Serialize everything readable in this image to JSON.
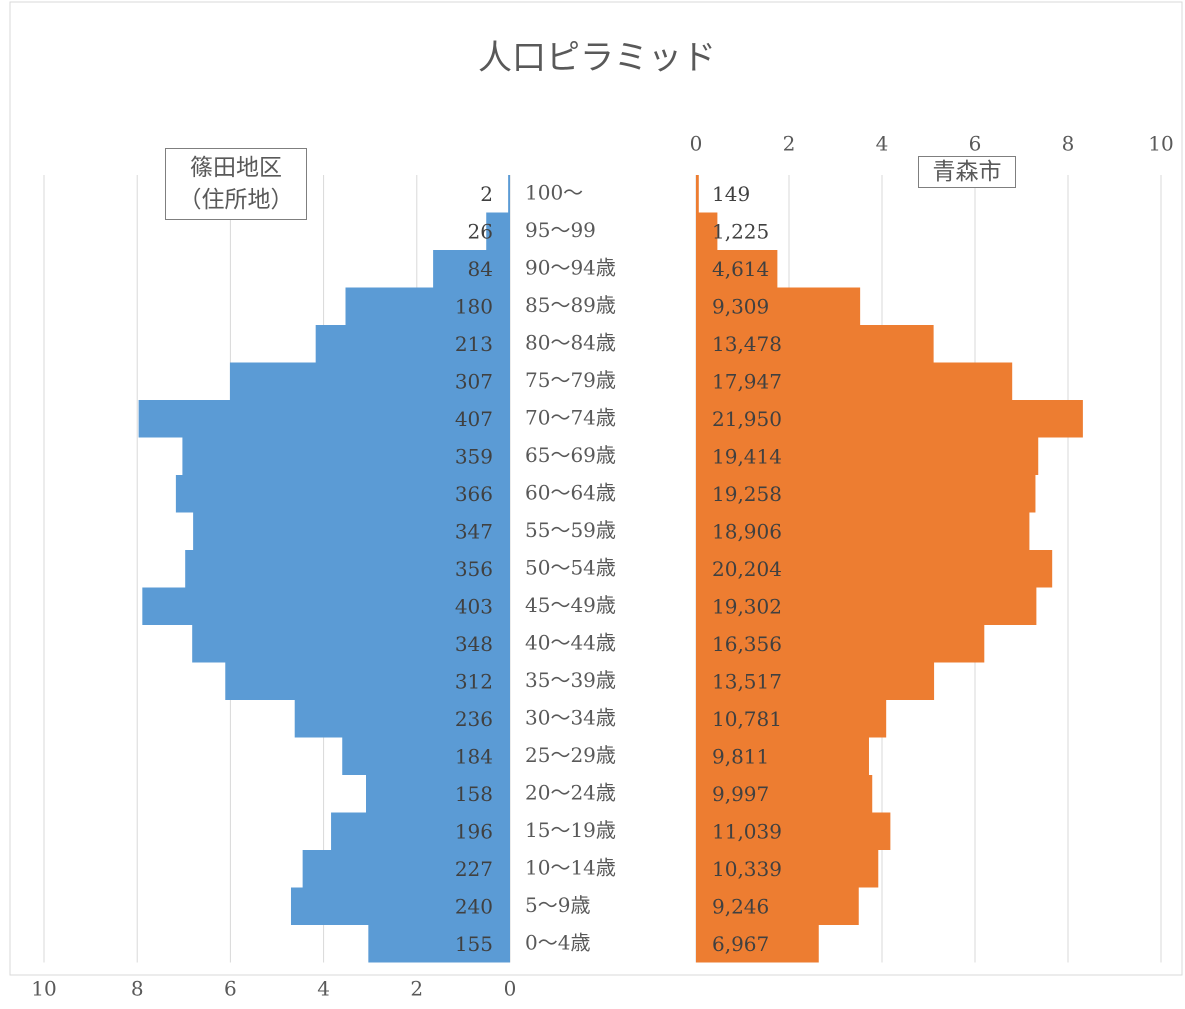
{
  "chart_data": {
    "type": "pyramid",
    "title": "人口ピラミッド",
    "categories": [
      "100～",
      "95～99",
      "90～94歳",
      "85～89歳",
      "80～84歳",
      "75～79歳",
      "70～74歳",
      "65～69歳",
      "60～64歳",
      "55～59歳",
      "50～54歳",
      "45～49歳",
      "40～44歳",
      "35～39歳",
      "30～34歳",
      "25～29歳",
      "20～24歳",
      "15～19歳",
      "10～14歳",
      "5～9歳",
      "0～4歳"
    ],
    "grid": true,
    "series": [
      {
        "name": "篠田地区（住所地）",
        "color": "#5b9bd5",
        "direction": "left",
        "axis": "bottom",
        "xlim": [
          0,
          10
        ],
        "xticks": [
          0,
          2,
          4,
          6,
          8,
          10
        ],
        "values": [
          0.04,
          0.51,
          1.65,
          3.53,
          4.17,
          6.01,
          7.97,
          7.03,
          7.17,
          6.8,
          6.97,
          7.89,
          6.82,
          6.11,
          4.62,
          3.6,
          3.09,
          3.84,
          4.45,
          4.7,
          3.04
        ],
        "count_labels": [
          "2",
          "26",
          "84",
          "180",
          "213",
          "307",
          "407",
          "359",
          "366",
          "347",
          "356",
          "403",
          "348",
          "312",
          "236",
          "184",
          "158",
          "196",
          "227",
          "240",
          "155"
        ]
      },
      {
        "name": "青森市",
        "color": "#ed7d31",
        "direction": "right",
        "axis": "top",
        "xlim": [
          0,
          10
        ],
        "xticks": [
          0,
          2,
          4,
          6,
          8,
          10
        ],
        "values": [
          0.06,
          0.46,
          1.75,
          3.53,
          5.11,
          6.8,
          8.32,
          7.36,
          7.3,
          7.17,
          7.66,
          7.32,
          6.2,
          5.12,
          4.09,
          3.72,
          3.79,
          4.18,
          3.92,
          3.5,
          2.64
        ],
        "count_labels": [
          "149",
          "1,225",
          "4,614",
          "9,309",
          "13,478",
          "17,947",
          "21,950",
          "19,414",
          "19,258",
          "18,906",
          "20,204",
          "19,302",
          "16,356",
          "13,517",
          "10,781",
          "9,811",
          "9,997",
          "11,039",
          "10,339",
          "9,246",
          "6,967"
        ]
      }
    ]
  }
}
